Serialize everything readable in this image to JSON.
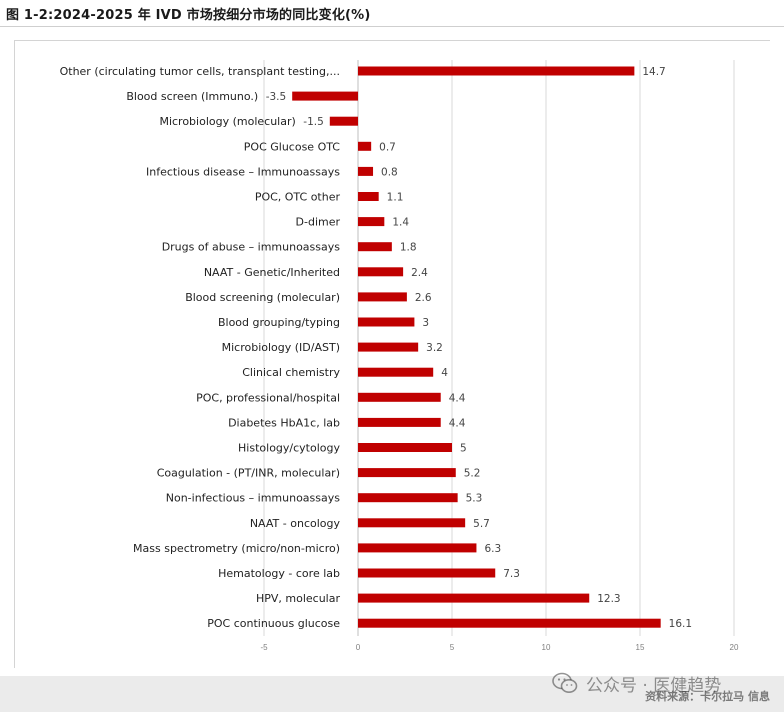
{
  "figure": {
    "title": "图 1-2:2024-2025 年 IVD 市场按细分市场的同比变化(%)",
    "source": "资料来源：卡尔拉马 信息"
  },
  "watermark": {
    "icon": "wechat-icon",
    "text": "公众号 · 医健趋势"
  },
  "colors": {
    "bar": "#c00000",
    "gridline": "#d9d9d9",
    "axis": "#bfbfbf"
  },
  "chart_data": {
    "type": "bar",
    "orientation": "horizontal",
    "categories": [
      "Other (circulating tumor cells, transplant testing,...",
      "Blood screen (Immuno.)",
      "Microbiology (molecular)",
      "POC Glucose OTC",
      "Infectious disease – Immunoassays",
      "POC, OTC other",
      "D-dimer",
      "Drugs of abuse – immunoassays",
      "NAAT - Genetic/Inherited",
      "Blood screening  (molecular)",
      "Blood grouping/typing",
      "Microbiology (ID/AST)",
      "Clinical chemistry",
      "POC, professional/hospital",
      "Diabetes HbA1c, lab",
      "Histology/cytology",
      "Coagulation - (PT/INR, molecular)",
      "Non-infectious – immunoassays",
      "NAAT - oncology",
      "Mass spectrometry (micro/non-micro)",
      "Hematology - core lab",
      "HPV, molecular",
      "POC continuous glucose"
    ],
    "values": [
      14.7,
      -3.5,
      -1.5,
      0.7,
      0.8,
      1.1,
      1.4,
      1.8,
      2.4,
      2.6,
      3,
      3.2,
      4,
      4.4,
      4.4,
      5,
      5.2,
      5.3,
      5.7,
      6.3,
      7.3,
      12.3,
      16.1
    ],
    "value_labels": [
      "14.7",
      "-3.5",
      "-1.5",
      "0.7",
      "0.8",
      "1.1",
      "1.4",
      "1.8",
      "2.4",
      "2.6",
      "3",
      "3.2",
      "4",
      "4.4",
      "4.4",
      "5",
      "5.2",
      "5.3",
      "5.7",
      "6.3",
      "7.3",
      "12.3",
      "16.1"
    ],
    "xlim": [
      -5,
      20
    ],
    "xticks": [
      -5,
      0,
      5,
      10,
      15,
      20
    ],
    "xtick_labels": [
      "-5",
      "0",
      "5",
      "10",
      "15",
      "20"
    ],
    "grid": true,
    "legend": "none"
  }
}
